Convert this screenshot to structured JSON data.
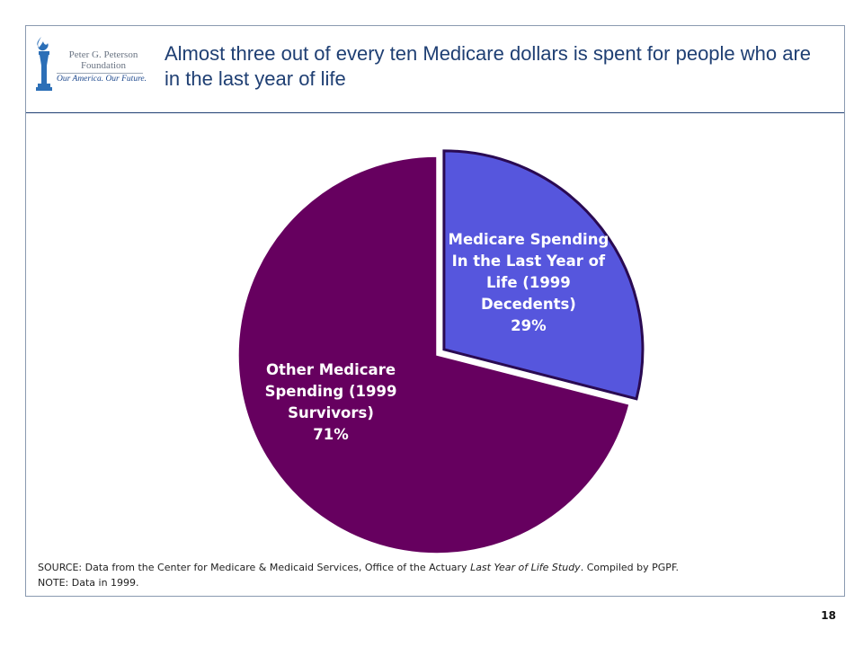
{
  "header": {
    "logo": {
      "name_line1": "Peter G. Peterson",
      "name_line2": "Foundation",
      "tagline": "Our America. Our Future."
    },
    "title": "Almost three out of every ten Medicare dollars is spent for people who are in the last year of life"
  },
  "chart_data": {
    "type": "pie",
    "title": "",
    "slices": [
      {
        "label_lines": [
          "Medicare Spending",
          "In the Last Year of",
          "Life (1999",
          "Decedents)"
        ],
        "value": 29,
        "value_label": "29%",
        "color": "#5656dd",
        "text_color": "#ffffff"
      },
      {
        "label_lines": [
          "Other Medicare",
          "Spending (1999",
          "Survivors)"
        ],
        "value": 71,
        "value_label": "71%",
        "color": "#66005f",
        "text_color": "#ffffff"
      }
    ]
  },
  "footer": {
    "source_prefix": "SOURCE: Data from the Center for Medicare & Medicaid Services, Office of the Actuary ",
    "source_italic": "Last Year of Life Study",
    "source_suffix": ". Compiled by PGPF.",
    "note": "NOTE: Data in 1999.",
    "page_number": "18"
  },
  "colors": {
    "title": "#1f3f73",
    "frame_border": "#8a9ab0",
    "slice_outline": "#2a0a52"
  }
}
